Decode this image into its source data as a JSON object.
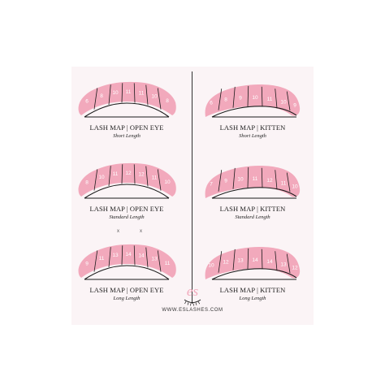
{
  "colors": {
    "pink": "#f2a9bc",
    "line": "#1a1a1a",
    "card": "#fbf4f6",
    "number": "#ffffff"
  },
  "maps": [
    {
      "title": "LASH MAP | OPEN EYE",
      "subtitle": "Short Length",
      "style": "open-eye",
      "lengths": [
        "6",
        "8",
        "10",
        "11",
        "11",
        "10",
        "8"
      ]
    },
    {
      "title": "LASH MAP | KITTEN",
      "subtitle": "Short Length",
      "style": "kitten",
      "lengths": [
        "6",
        "8",
        "9",
        "10",
        "11",
        "10",
        "9"
      ]
    },
    {
      "title": "LASH MAP | OPEN EYE",
      "subtitle": "Standard Length",
      "style": "open-eye",
      "lengths": [
        "8",
        "10",
        "11",
        "12",
        "12",
        "11",
        "10"
      ]
    },
    {
      "title": "LASH MAP | KITTEN",
      "subtitle": "Standard Length",
      "style": "kitten",
      "lengths": [
        "7",
        "9",
        "10",
        "11",
        "12",
        "11",
        "10"
      ]
    },
    {
      "title": "LASH MAP | OPEN EYE",
      "subtitle": "Long Length",
      "style": "open-eye",
      "lengths": [
        "9",
        "11",
        "13",
        "14",
        "14",
        "13",
        "11"
      ]
    },
    {
      "title": "LASH MAP | KITTEN",
      "subtitle": "Long Length",
      "style": "kitten",
      "lengths": [
        "10",
        "12",
        "13",
        "14",
        "14",
        "13",
        "12"
      ]
    }
  ],
  "brand": {
    "logo_text": "es",
    "icon": "eyelash-logo-icon",
    "website": "WWW.ESLASHES.COM"
  },
  "stray_marks": [
    "x",
    "x"
  ]
}
